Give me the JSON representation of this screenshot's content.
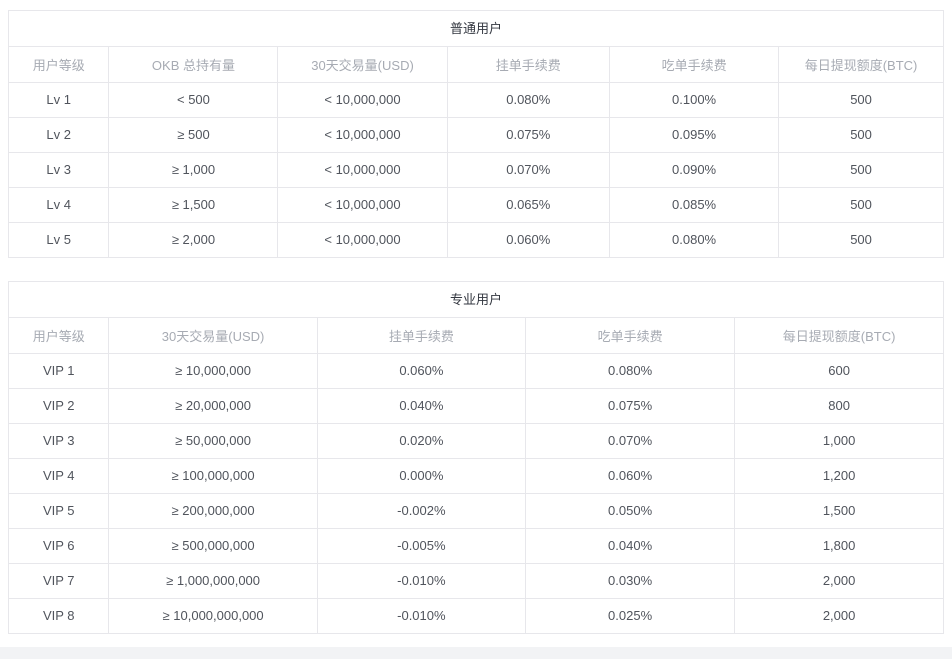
{
  "colors": {
    "border": "#e7e7eb",
    "header_text": "#a7abb3",
    "body_text": "#50545c",
    "title_text": "#333740",
    "bottom_strip": "#f2f3f5"
  },
  "tables": [
    {
      "title": "普通用户",
      "columns": [
        "用户等级",
        "OKB 总持有量",
        "30天交易量(USD)",
        "挂单手续费",
        "吃单手续费",
        "每日提现额度(BTC)"
      ],
      "rows": [
        [
          "Lv 1",
          "< 500",
          "< 10,000,000",
          "0.080%",
          "0.100%",
          "500"
        ],
        [
          "Lv 2",
          "≥ 500",
          "< 10,000,000",
          "0.075%",
          "0.095%",
          "500"
        ],
        [
          "Lv 3",
          "≥ 1,000",
          "< 10,000,000",
          "0.070%",
          "0.090%",
          "500"
        ],
        [
          "Lv 4",
          "≥ 1,500",
          "< 10,000,000",
          "0.065%",
          "0.085%",
          "500"
        ],
        [
          "Lv 5",
          "≥ 2,000",
          "< 10,000,000",
          "0.060%",
          "0.080%",
          "500"
        ]
      ]
    },
    {
      "title": "专业用户",
      "columns": [
        "用户等级",
        "30天交易量(USD)",
        "挂单手续费",
        "吃单手续费",
        "每日提现额度(BTC)"
      ],
      "rows": [
        [
          "VIP 1",
          "≥ 10,000,000",
          "0.060%",
          "0.080%",
          "600"
        ],
        [
          "VIP 2",
          "≥ 20,000,000",
          "0.040%",
          "0.075%",
          "800"
        ],
        [
          "VIP 3",
          "≥ 50,000,000",
          "0.020%",
          "0.070%",
          "1,000"
        ],
        [
          "VIP 4",
          "≥ 100,000,000",
          "0.000%",
          "0.060%",
          "1,200"
        ],
        [
          "VIP 5",
          "≥ 200,000,000",
          "-0.002%",
          "0.050%",
          "1,500"
        ],
        [
          "VIP 6",
          "≥ 500,000,000",
          "-0.005%",
          "0.040%",
          "1,800"
        ],
        [
          "VIP 7",
          "≥ 1,000,000,000",
          "-0.010%",
          "0.030%",
          "2,000"
        ],
        [
          "VIP 8",
          "≥ 10,000,000,000",
          "-0.010%",
          "0.025%",
          "2,000"
        ]
      ]
    }
  ]
}
